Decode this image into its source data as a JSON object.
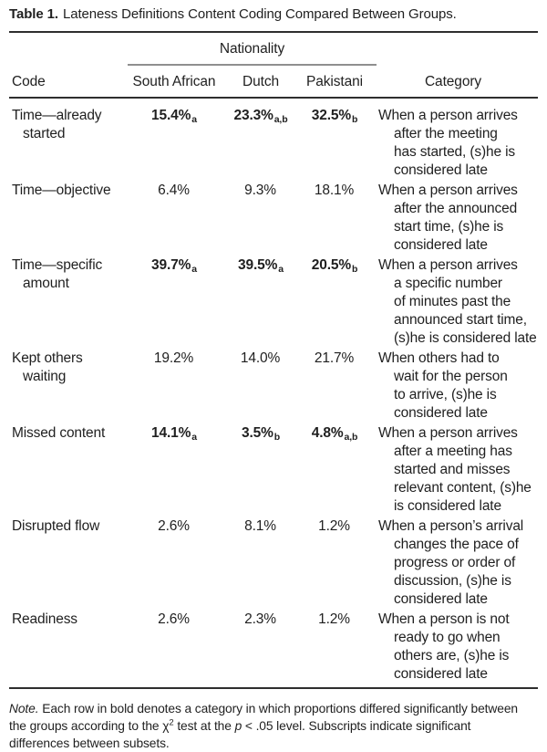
{
  "title": {
    "label": "Table 1.",
    "text": "Lateness Definitions Content Coding Compared Between Groups."
  },
  "table": {
    "spanner": "Nationality",
    "columns": {
      "code": "Code",
      "south_african": "South African",
      "dutch": "Dutch",
      "pakistani": "Pakistani",
      "category": "Category"
    },
    "rows": [
      {
        "code": "Time—already\nstarted",
        "significant": true,
        "south_african": {
          "value": "15.4%",
          "sub": "a"
        },
        "dutch": {
          "value": "23.3%",
          "sub": "a,b"
        },
        "pakistani": {
          "value": "32.5%",
          "sub": "b"
        },
        "category": "When a person arrives\nafter the meeting\nhas started, (s)he is\nconsidered late"
      },
      {
        "code": "Time—objective",
        "significant": false,
        "south_african": {
          "value": "6.4%",
          "sub": ""
        },
        "dutch": {
          "value": "9.3%",
          "sub": ""
        },
        "pakistani": {
          "value": "18.1%",
          "sub": ""
        },
        "category": "When a person arrives\nafter the announced\nstart time, (s)he is\nconsidered late"
      },
      {
        "code": "Time—specific\namount",
        "significant": true,
        "south_african": {
          "value": "39.7%",
          "sub": "a"
        },
        "dutch": {
          "value": "39.5%",
          "sub": "a"
        },
        "pakistani": {
          "value": "20.5%",
          "sub": "b"
        },
        "category": "When a person arrives\na specific number\nof minutes past the\nannounced start time,\n(s)he is considered late"
      },
      {
        "code": "Kept others\nwaiting",
        "significant": false,
        "south_african": {
          "value": "19.2%",
          "sub": ""
        },
        "dutch": {
          "value": "14.0%",
          "sub": ""
        },
        "pakistani": {
          "value": "21.7%",
          "sub": ""
        },
        "category": "When others had to\nwait for the person\nto arrive, (s)he is\nconsidered late"
      },
      {
        "code": "Missed content",
        "significant": true,
        "south_african": {
          "value": "14.1%",
          "sub": "a"
        },
        "dutch": {
          "value": "3.5%",
          "sub": "b"
        },
        "pakistani": {
          "value": "4.8%",
          "sub": "a,b"
        },
        "category": "When a person arrives\nafter a meeting has\nstarted and misses\nrelevant content, (s)he\nis considered late"
      },
      {
        "code": "Disrupted flow",
        "significant": false,
        "south_african": {
          "value": "2.6%",
          "sub": ""
        },
        "dutch": {
          "value": "8.1%",
          "sub": ""
        },
        "pakistani": {
          "value": "1.2%",
          "sub": ""
        },
        "category": "When a person’s arrival\nchanges the pace of\nprogress or order of\ndiscussion, (s)he is\nconsidered late"
      },
      {
        "code": "Readiness",
        "significant": false,
        "south_african": {
          "value": "2.6%",
          "sub": ""
        },
        "dutch": {
          "value": "2.3%",
          "sub": ""
        },
        "pakistani": {
          "value": "1.2%",
          "sub": ""
        },
        "category": "When a person is not\nready to go when\nothers are, (s)he is\nconsidered late"
      }
    ]
  },
  "note": {
    "lines": [
      {
        "segments": [
          {
            "text": "Note.",
            "style": "italic"
          },
          {
            "text": " Each row in bold denotes a category in which proportions differed significantly between",
            "style": "normal"
          }
        ]
      },
      {
        "segments": [
          {
            "text": "the groups according to the ",
            "style": "normal"
          },
          {
            "text": "χ",
            "style": "normal"
          },
          {
            "text": "2",
            "style": "sup"
          },
          {
            "text": " test at the ",
            "style": "normal"
          },
          {
            "text": "p",
            "style": "italic"
          },
          {
            "text": " < .05 level. Subscripts indicate significant",
            "style": "normal"
          }
        ]
      },
      {
        "segments": [
          {
            "text": "differences between subsets.",
            "style": "normal"
          }
        ]
      }
    ]
  },
  "colors": {
    "text": "#1f1f1f",
    "heavy_rule": "#2e2e2e",
    "spanner_rule": "#8f8f8f",
    "background": "#ffffff"
  }
}
